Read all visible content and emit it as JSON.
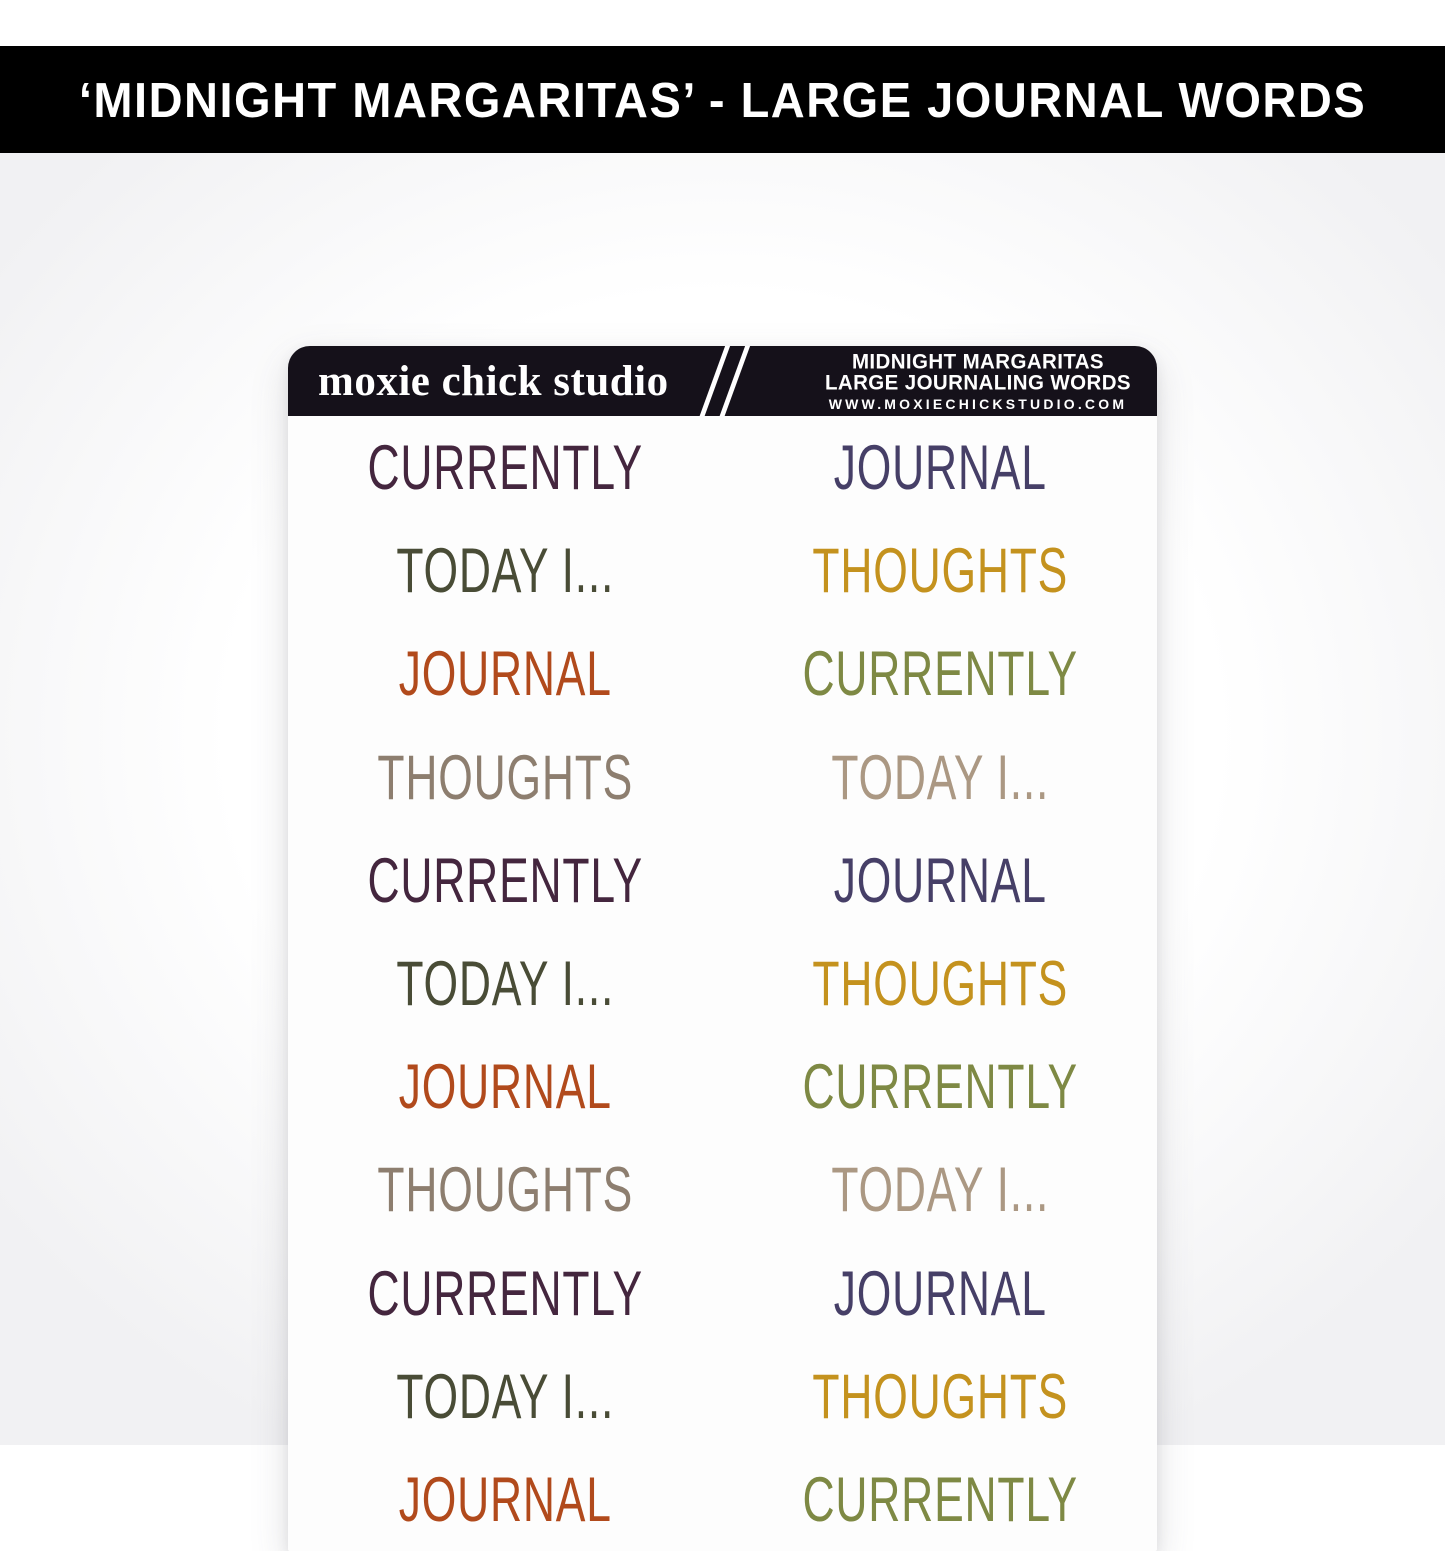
{
  "banner": {
    "title": "‘MIDNIGHT MARGARITAS’ - LARGE JOURNAL WORDS"
  },
  "sheet": {
    "header": {
      "brand": "moxie chick studio",
      "title_line1": "MIDNIGHT MARGARITAS",
      "title_line2": "LARGE JOURNALING WORDS",
      "url": "WWW.MOXIECHICKSTUDIO.COM"
    },
    "colors": {
      "plum": "#44263e",
      "dark_olive": "#494c36",
      "rust": "#b14a1c",
      "taupe": "#8d7e6f",
      "indigo": "#463f67",
      "mustard": "#c4921e",
      "olive": "#7e8944",
      "tan": "#ab9883"
    },
    "left_column": [
      {
        "text": "CURRENTLY",
        "color": "plum"
      },
      {
        "text": "TODAY I...",
        "color": "dark_olive"
      },
      {
        "text": "JOURNAL",
        "color": "rust"
      },
      {
        "text": "THOUGHTS",
        "color": "taupe"
      },
      {
        "text": "CURRENTLY",
        "color": "plum"
      },
      {
        "text": "TODAY I...",
        "color": "dark_olive"
      },
      {
        "text": "JOURNAL",
        "color": "rust"
      },
      {
        "text": "THOUGHTS",
        "color": "taupe"
      },
      {
        "text": "CURRENTLY",
        "color": "plum"
      },
      {
        "text": "TODAY I...",
        "color": "dark_olive"
      },
      {
        "text": "JOURNAL",
        "color": "rust"
      }
    ],
    "right_column": [
      {
        "text": "JOURNAL",
        "color": "indigo"
      },
      {
        "text": "THOUGHTS",
        "color": "mustard"
      },
      {
        "text": "CURRENTLY",
        "color": "olive"
      },
      {
        "text": "TODAY I...",
        "color": "tan"
      },
      {
        "text": "JOURNAL",
        "color": "indigo"
      },
      {
        "text": "THOUGHTS",
        "color": "mustard"
      },
      {
        "text": "CURRENTLY",
        "color": "olive"
      },
      {
        "text": "TODAY I...",
        "color": "tan"
      },
      {
        "text": "JOURNAL",
        "color": "indigo"
      },
      {
        "text": "THOUGHTS",
        "color": "mustard"
      },
      {
        "text": "CURRENTLY",
        "color": "olive"
      }
    ]
  }
}
